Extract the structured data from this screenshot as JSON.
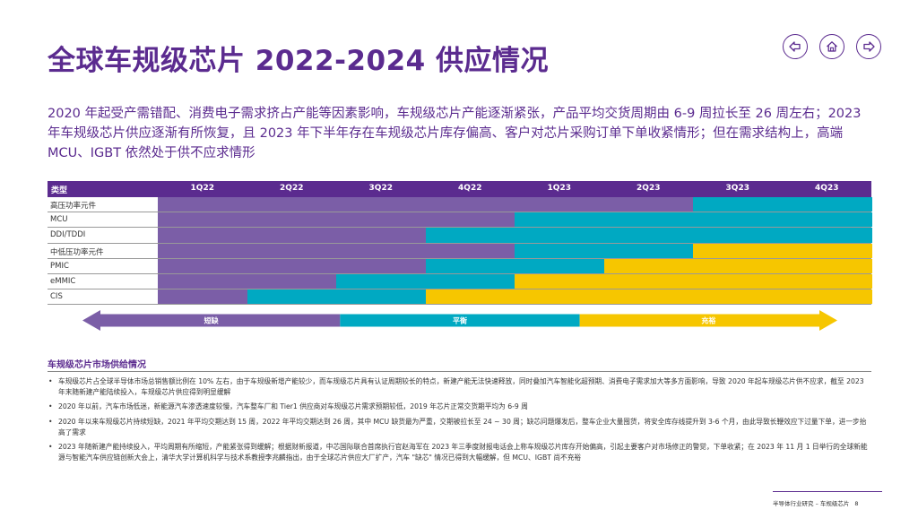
{
  "title": "全球车规级芯片 2022-2024 供应情况",
  "nav": {
    "back_icon": "back-arrow-icon",
    "home_icon": "home-icon",
    "forward_icon": "forward-arrow-icon"
  },
  "intro": "2020 年起受产需错配、消费电子需求挤占产能等因素影响，车规级芯片产能逐渐紧张，产品平均交货周期由 6-9 周拉长至 26 周左右；2023 年车规级芯片供应逐渐有所恢复，且 2023 年下半年存在车规级芯片库存偏高、客户对芯片采购订单下单收紧情形；但在需求结构上，高端 MCU、IGBT 依然处于供不应求情形",
  "chart_data": {
    "type": "table",
    "header_label": "类型",
    "quarters": [
      "1Q22",
      "2Q22",
      "3Q22",
      "4Q22",
      "1Q23",
      "2Q23",
      "3Q23",
      "4Q23"
    ],
    "status_legend": [
      "短缺",
      "平衡",
      "充裕"
    ],
    "colors": {
      "短缺": "#7b5ea7",
      "平衡": "#00a9c2",
      "充裕": "#f6c600"
    },
    "rows": [
      {
        "label": "高压功率元件",
        "statuses": [
          "短缺",
          "短缺",
          "短缺",
          "短缺",
          "短缺",
          "短缺",
          "平衡",
          "平衡"
        ]
      },
      {
        "label": "MCU",
        "statuses": [
          "短缺",
          "短缺",
          "短缺",
          "短缺",
          "平衡",
          "平衡",
          "平衡",
          "平衡"
        ]
      },
      {
        "label": "DDI/TDDI",
        "statuses": [
          "短缺",
          "短缺",
          "短缺",
          "平衡",
          "平衡",
          "平衡",
          "平衡",
          "平衡"
        ]
      },
      {
        "label": "中低压功率元件",
        "statuses": [
          "短缺",
          "短缺",
          "短缺",
          "短缺",
          "平衡",
          "平衡",
          "充裕",
          "充裕"
        ]
      },
      {
        "label": "PMIC",
        "statuses": [
          "短缺",
          "短缺",
          "短缺",
          "平衡",
          "平衡",
          "充裕",
          "充裕",
          "充裕"
        ]
      },
      {
        "label": "eMMIC",
        "statuses": [
          "短缺",
          "短缺",
          "平衡",
          "平衡",
          "充裕",
          "充裕",
          "充裕",
          "充裕"
        ]
      },
      {
        "label": "CIS",
        "statuses": [
          "短缺",
          "平衡",
          "平衡",
          "充裕",
          "充裕",
          "充裕",
          "充裕",
          "充裕"
        ]
      }
    ]
  },
  "section_title": "车规级芯片市场供给情况",
  "bullets": [
    "车规级芯片占全球半导体市场总销售额比例在 10% 左右，由于车规级新增产能较少，而车规级芯片具有认证周期较长的特点，新建产能无法快速释放，同时叠加汽车智能化超预期、消费电子需求加大等多方面影响，导致 2020 年起车规级芯片供不应求，截至 2023 年末随新建产能陆续投入，车规级芯片供应得到明显缓解",
    "2020 年以前，汽车市场低迷，新能源汽车渗透速度较慢，汽车整车厂和 Tier1 供应商对车规级芯片需求预期较低，2019 年芯片正常交货期平均为 6-9 周",
    "2020 年以来车规级芯片持续短缺，2021 年平均交期达到 15 周，2022 年平均交期达到 26 周，其中 MCU 缺货最为严重，交期被拉长至 24 ~ 30 周；缺芯问题爆发后，整车企业大量囤货，将安全库存线提升到 3-6 个月，由此导致长鞭效应下过量下单，进一步抬高了需求",
    "2023 年随新建产能持续投入，平均周期有所缩短，产能紧张得到缓解；根据财新报道，中芯国际联合首席执行官赵海军在 2023 年三季度财报电话会上称车规级芯片库存开始偏高，引起主要客户对市场修正的警觉，下单收紧；在 2023 年 11 月 1 日举行的全球新能源与智能汽车供应链创新大会上，清华大学计算机科学与技术系教授李兆麟指出，由于全球芯片供应大厂扩产，汽车 \"缺芯\" 情况已得到大幅缓解，但 MCU、IGBT 尚不充裕"
  ],
  "footer": {
    "text": "半导体行业研究 – 车规级芯片",
    "page": "8"
  }
}
